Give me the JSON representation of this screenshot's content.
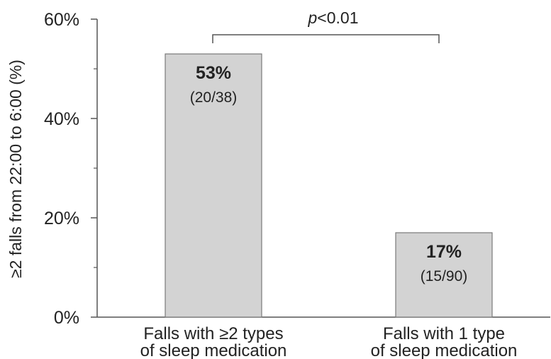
{
  "chart_data": {
    "type": "bar",
    "ylabel": "≥2 falls from 22:00 to 6:00 (%)",
    "ylim": [
      0,
      60
    ],
    "yticks": [
      {
        "value": 0,
        "label": "0%"
      },
      {
        "value": 20,
        "label": "20%"
      },
      {
        "value": 40,
        "label": "40%"
      },
      {
        "value": 60,
        "label": "60%"
      }
    ],
    "minor_ticks": [
      10,
      30,
      50
    ],
    "categories": [
      [
        "Falls with ≥2 types",
        "of sleep medication"
      ],
      [
        "Falls with 1 type",
        "of sleep medication"
      ]
    ],
    "values": [
      53,
      17
    ],
    "value_labels": [
      "53%",
      "17%"
    ],
    "fraction_labels": [
      "(20/38)",
      "(15/90)"
    ],
    "bar_color": "#d3d3d3",
    "bar_edge_color": "#7a7a7a",
    "significance": {
      "p_symbol": "p",
      "p_rest": "<0.01"
    },
    "grid": false,
    "legend": "none"
  }
}
